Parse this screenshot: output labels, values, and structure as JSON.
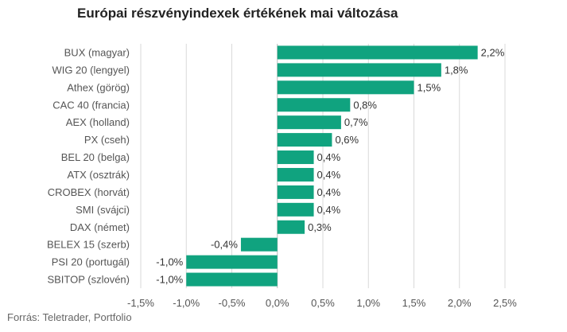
{
  "title": "Európai részvényindexek értékének mai változása",
  "source": "Forrás: Teletrader, Portfolio",
  "colors": {
    "bar": "#10a37f",
    "grid": "#d9d9d9",
    "axis": "#bbbbbb"
  },
  "chart_data": {
    "type": "bar",
    "orientation": "horizontal",
    "title": "Európai részvényindexek értékének mai változása",
    "categories": [
      "BUX (magyar)",
      "WIG 20 (lengyel)",
      "Athex (görög)",
      "CAC 40 (francia)",
      "AEX (holland)",
      "PX (cseh)",
      "BEL 20 (belga)",
      "ATX (osztrák)",
      "CROBEX (horvát)",
      "SMI (svájci)",
      "DAX (német)",
      "BELEX 15 (szerb)",
      "PSI 20 (portugál)",
      "SBITOP (szlovén)"
    ],
    "values": [
      2.2,
      1.8,
      1.5,
      0.8,
      0.7,
      0.6,
      0.4,
      0.4,
      0.4,
      0.4,
      0.3,
      -0.4,
      -1.0,
      -1.0
    ],
    "value_labels": [
      "2,2%",
      "1,8%",
      "1,5%",
      "0,8%",
      "0,7%",
      "0,6%",
      "0,4%",
      "0,4%",
      "0,4%",
      "0,4%",
      "0,3%",
      "-0,4%",
      "-1,0%",
      "-1,0%"
    ],
    "xlim": [
      -1.5,
      2.5
    ],
    "xticks": [
      -1.5,
      -1.0,
      -0.5,
      0.0,
      0.5,
      1.0,
      1.5,
      2.0,
      2.5
    ],
    "xtick_labels": [
      "-1,5%",
      "-1,0%",
      "-0,5%",
      "0,0%",
      "0,5%",
      "1,0%",
      "1,5%",
      "2,0%",
      "2,5%"
    ],
    "xlabel": "",
    "ylabel": "",
    "grid": "vertical"
  }
}
